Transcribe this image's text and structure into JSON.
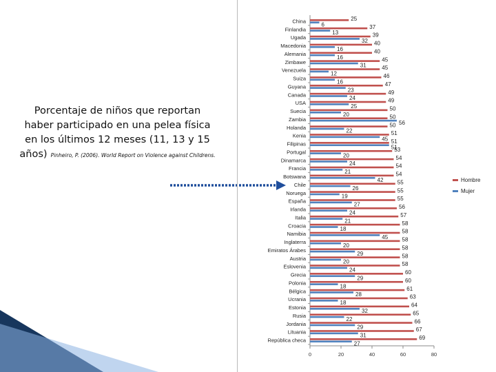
{
  "caption": {
    "text": "Porcentaje de niños que reportan haber participado en una pelea física en los últimos 12 meses  (11, 13 y 15 años)",
    "citation": "Pinheiro, P. (2006). World Report on Violence against Childrens."
  },
  "chart_data": {
    "type": "bar",
    "orientation": "horizontal",
    "categories": [
      "China",
      "Finlandia",
      "Ugada",
      "Macedonia",
      "Alemania",
      "Zimbawe",
      "Venezuela",
      "Suiza",
      "Guyana",
      "Canada",
      "USA",
      "Suecia",
      "Zambia",
      "Holanda",
      "Kenia",
      "Filipinas",
      "Portugal",
      "Dinamarca",
      "Francia",
      "Botswana",
      "Chile",
      "Noruega",
      "España",
      "Irlanda",
      "Italia",
      "Croacia",
      "Namibia",
      "Inglaterra",
      "Emiratos Árabes",
      "Austria",
      "Eslovenia",
      "Grecia",
      "Polonia",
      "Bélgica",
      "Ucrania",
      "Estonia",
      "Rusia",
      "Jordania",
      "Lituania",
      "República checa"
    ],
    "series": [
      {
        "name": "Hombre",
        "color": "#c0504d",
        "values": [
          25,
          37,
          39,
          40,
          40,
          45,
          45,
          46,
          47,
          49,
          49,
          50,
          50,
          50,
          51,
          51,
          53,
          54,
          54,
          54,
          55,
          55,
          55,
          56,
          57,
          58,
          58,
          58,
          58,
          58,
          58,
          60,
          60,
          61,
          63,
          64,
          65,
          66,
          67,
          69
        ]
      },
      {
        "name": "Mujer",
        "color": "#4f81bd",
        "values": [
          6,
          13,
          32,
          16,
          16,
          31,
          12,
          16,
          23,
          24,
          25,
          20,
          56,
          22,
          45,
          51,
          20,
          24,
          21,
          42,
          26,
          19,
          27,
          24,
          21,
          18,
          45,
          20,
          29,
          20,
          24,
          29,
          18,
          28,
          18,
          32,
          22,
          29,
          31,
          27
        ]
      }
    ],
    "xlim": [
      0,
      80
    ],
    "xticks": [
      0,
      20,
      40,
      60,
      80
    ],
    "legend_position": "right"
  },
  "colors": {
    "corner_dark": "#17365d",
    "corner_light": "#8db3e2",
    "arrow": "#1f4e9c"
  }
}
